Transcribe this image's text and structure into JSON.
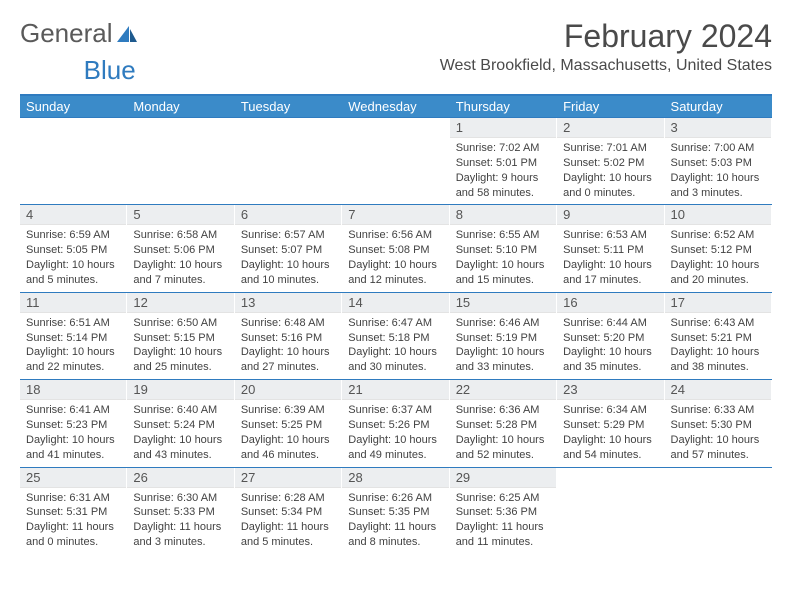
{
  "logo": {
    "text1": "General",
    "text2": "Blue"
  },
  "title": "February 2024",
  "location": "West Brookfield, Massachusetts, United States",
  "header_bg": "#3b8bc9",
  "border_color": "#2f7bbf",
  "daynum_bg": "#eceef0",
  "weekdays": [
    "Sunday",
    "Monday",
    "Tuesday",
    "Wednesday",
    "Thursday",
    "Friday",
    "Saturday"
  ],
  "weeks": [
    [
      {
        "n": "",
        "sr": "",
        "ss": "",
        "dl": ""
      },
      {
        "n": "",
        "sr": "",
        "ss": "",
        "dl": ""
      },
      {
        "n": "",
        "sr": "",
        "ss": "",
        "dl": ""
      },
      {
        "n": "",
        "sr": "",
        "ss": "",
        "dl": ""
      },
      {
        "n": "1",
        "sr": "Sunrise: 7:02 AM",
        "ss": "Sunset: 5:01 PM",
        "dl": "Daylight: 9 hours and 58 minutes."
      },
      {
        "n": "2",
        "sr": "Sunrise: 7:01 AM",
        "ss": "Sunset: 5:02 PM",
        "dl": "Daylight: 10 hours and 0 minutes."
      },
      {
        "n": "3",
        "sr": "Sunrise: 7:00 AM",
        "ss": "Sunset: 5:03 PM",
        "dl": "Daylight: 10 hours and 3 minutes."
      }
    ],
    [
      {
        "n": "4",
        "sr": "Sunrise: 6:59 AM",
        "ss": "Sunset: 5:05 PM",
        "dl": "Daylight: 10 hours and 5 minutes."
      },
      {
        "n": "5",
        "sr": "Sunrise: 6:58 AM",
        "ss": "Sunset: 5:06 PM",
        "dl": "Daylight: 10 hours and 7 minutes."
      },
      {
        "n": "6",
        "sr": "Sunrise: 6:57 AM",
        "ss": "Sunset: 5:07 PM",
        "dl": "Daylight: 10 hours and 10 minutes."
      },
      {
        "n": "7",
        "sr": "Sunrise: 6:56 AM",
        "ss": "Sunset: 5:08 PM",
        "dl": "Daylight: 10 hours and 12 minutes."
      },
      {
        "n": "8",
        "sr": "Sunrise: 6:55 AM",
        "ss": "Sunset: 5:10 PM",
        "dl": "Daylight: 10 hours and 15 minutes."
      },
      {
        "n": "9",
        "sr": "Sunrise: 6:53 AM",
        "ss": "Sunset: 5:11 PM",
        "dl": "Daylight: 10 hours and 17 minutes."
      },
      {
        "n": "10",
        "sr": "Sunrise: 6:52 AM",
        "ss": "Sunset: 5:12 PM",
        "dl": "Daylight: 10 hours and 20 minutes."
      }
    ],
    [
      {
        "n": "11",
        "sr": "Sunrise: 6:51 AM",
        "ss": "Sunset: 5:14 PM",
        "dl": "Daylight: 10 hours and 22 minutes."
      },
      {
        "n": "12",
        "sr": "Sunrise: 6:50 AM",
        "ss": "Sunset: 5:15 PM",
        "dl": "Daylight: 10 hours and 25 minutes."
      },
      {
        "n": "13",
        "sr": "Sunrise: 6:48 AM",
        "ss": "Sunset: 5:16 PM",
        "dl": "Daylight: 10 hours and 27 minutes."
      },
      {
        "n": "14",
        "sr": "Sunrise: 6:47 AM",
        "ss": "Sunset: 5:18 PM",
        "dl": "Daylight: 10 hours and 30 minutes."
      },
      {
        "n": "15",
        "sr": "Sunrise: 6:46 AM",
        "ss": "Sunset: 5:19 PM",
        "dl": "Daylight: 10 hours and 33 minutes."
      },
      {
        "n": "16",
        "sr": "Sunrise: 6:44 AM",
        "ss": "Sunset: 5:20 PM",
        "dl": "Daylight: 10 hours and 35 minutes."
      },
      {
        "n": "17",
        "sr": "Sunrise: 6:43 AM",
        "ss": "Sunset: 5:21 PM",
        "dl": "Daylight: 10 hours and 38 minutes."
      }
    ],
    [
      {
        "n": "18",
        "sr": "Sunrise: 6:41 AM",
        "ss": "Sunset: 5:23 PM",
        "dl": "Daylight: 10 hours and 41 minutes."
      },
      {
        "n": "19",
        "sr": "Sunrise: 6:40 AM",
        "ss": "Sunset: 5:24 PM",
        "dl": "Daylight: 10 hours and 43 minutes."
      },
      {
        "n": "20",
        "sr": "Sunrise: 6:39 AM",
        "ss": "Sunset: 5:25 PM",
        "dl": "Daylight: 10 hours and 46 minutes."
      },
      {
        "n": "21",
        "sr": "Sunrise: 6:37 AM",
        "ss": "Sunset: 5:26 PM",
        "dl": "Daylight: 10 hours and 49 minutes."
      },
      {
        "n": "22",
        "sr": "Sunrise: 6:36 AM",
        "ss": "Sunset: 5:28 PM",
        "dl": "Daylight: 10 hours and 52 minutes."
      },
      {
        "n": "23",
        "sr": "Sunrise: 6:34 AM",
        "ss": "Sunset: 5:29 PM",
        "dl": "Daylight: 10 hours and 54 minutes."
      },
      {
        "n": "24",
        "sr": "Sunrise: 6:33 AM",
        "ss": "Sunset: 5:30 PM",
        "dl": "Daylight: 10 hours and 57 minutes."
      }
    ],
    [
      {
        "n": "25",
        "sr": "Sunrise: 6:31 AM",
        "ss": "Sunset: 5:31 PM",
        "dl": "Daylight: 11 hours and 0 minutes."
      },
      {
        "n": "26",
        "sr": "Sunrise: 6:30 AM",
        "ss": "Sunset: 5:33 PM",
        "dl": "Daylight: 11 hours and 3 minutes."
      },
      {
        "n": "27",
        "sr": "Sunrise: 6:28 AM",
        "ss": "Sunset: 5:34 PM",
        "dl": "Daylight: 11 hours and 5 minutes."
      },
      {
        "n": "28",
        "sr": "Sunrise: 6:26 AM",
        "ss": "Sunset: 5:35 PM",
        "dl": "Daylight: 11 hours and 8 minutes."
      },
      {
        "n": "29",
        "sr": "Sunrise: 6:25 AM",
        "ss": "Sunset: 5:36 PM",
        "dl": "Daylight: 11 hours and 11 minutes."
      },
      {
        "n": "",
        "sr": "",
        "ss": "",
        "dl": ""
      },
      {
        "n": "",
        "sr": "",
        "ss": "",
        "dl": ""
      }
    ]
  ]
}
